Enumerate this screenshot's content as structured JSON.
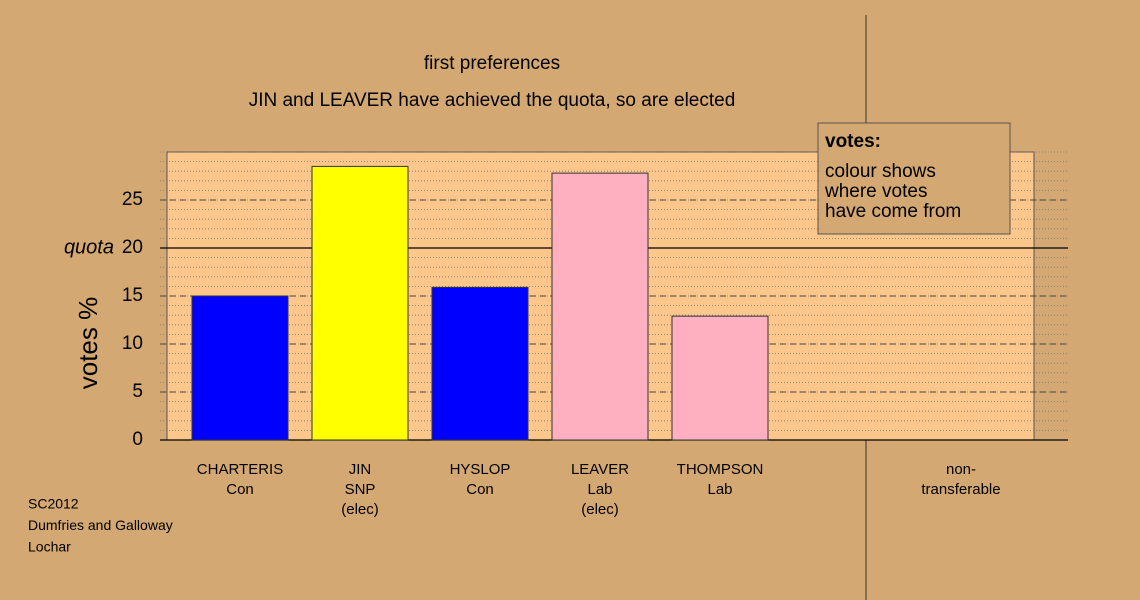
{
  "chart_data": {
    "type": "bar",
    "title": "first preferences",
    "subtitle": "JIN and LEAVER have achieved the quota, so are elected",
    "y_label": "votes %",
    "categories": [
      [
        "CHARTERIS",
        "Con"
      ],
      [
        "JIN",
        "SNP",
        "(elec)"
      ],
      [
        "HYSLOP",
        "Con"
      ],
      [
        "LEAVER",
        "Lab",
        "(elec)"
      ],
      [
        "THOMPSON",
        "Lab"
      ],
      [
        "non-",
        "transferable"
      ]
    ],
    "values": [
      15,
      28.5,
      15.9,
      27.8,
      12.9,
      0
    ],
    "colors": [
      "#0000ff",
      "#ffff00",
      "#0000ff",
      "#ffb0c0",
      "#ffb0c0",
      "#ffb0c0"
    ],
    "ylim": [
      0,
      30
    ],
    "yticks": [
      0,
      5,
      10,
      15,
      20,
      25
    ],
    "quota": {
      "value": 20,
      "label": "quota"
    },
    "grid": true,
    "legend": {
      "title": "votes:",
      "lines": [
        "colour shows",
        "where votes",
        "have come from"
      ]
    },
    "footer": [
      "SC2012",
      "Dumfries and Galloway",
      "Lochar"
    ]
  }
}
